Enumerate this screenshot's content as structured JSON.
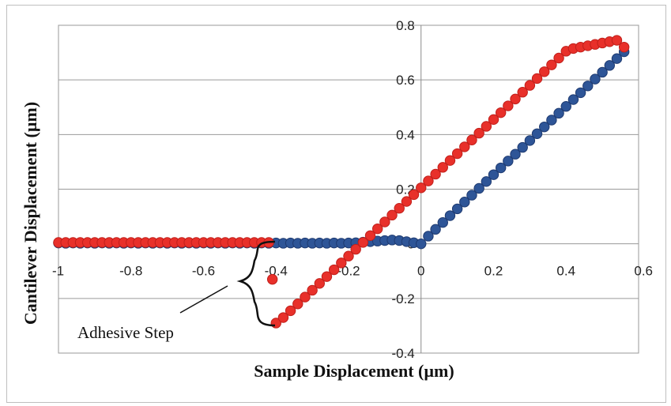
{
  "chart_data": {
    "type": "scatter",
    "title": "",
    "xlabel": "Sample Displacement (µm)",
    "ylabel": "Cantilever Displacement (µm)",
    "xlim": [
      -1,
      0.6
    ],
    "ylim": [
      -0.4,
      0.8
    ],
    "x_ticks": [
      "-1",
      "-0.8",
      "-0.6",
      "-0.4",
      "-0.2",
      "0",
      "0.2",
      "0.4",
      "0.6"
    ],
    "y_ticks": [
      "-0.4",
      "-0.2",
      "0",
      "0.2",
      "0.4",
      "0.6",
      "0.8"
    ],
    "grid": "horizontal",
    "legend": "none",
    "annotation": "Adhesive Step",
    "series": [
      {
        "color": "#2e5597",
        "x": [
          -1.0,
          -0.98,
          -0.96,
          -0.94,
          -0.92,
          -0.9,
          -0.88,
          -0.86,
          -0.84,
          -0.82,
          -0.8,
          -0.78,
          -0.76,
          -0.74,
          -0.72,
          -0.7,
          -0.68,
          -0.66,
          -0.64,
          -0.62,
          -0.6,
          -0.58,
          -0.56,
          -0.54,
          -0.52,
          -0.5,
          -0.48,
          -0.46,
          -0.44,
          -0.42,
          -0.4,
          -0.38,
          -0.36,
          -0.34,
          -0.32,
          -0.3,
          -0.28,
          -0.26,
          -0.24,
          -0.22,
          -0.2,
          -0.18,
          -0.16,
          -0.14,
          -0.12,
          -0.1,
          -0.08,
          -0.06,
          -0.04,
          -0.02,
          0.0,
          0.02,
          0.04,
          0.06,
          0.08,
          0.1,
          0.12,
          0.14,
          0.16,
          0.18,
          0.2,
          0.22,
          0.24,
          0.26,
          0.28,
          0.3,
          0.32,
          0.34,
          0.36,
          0.38,
          0.4,
          0.42,
          0.44,
          0.46,
          0.48,
          0.5,
          0.52,
          0.54,
          0.56
        ],
        "y": [
          0.003,
          0.002,
          0.003,
          0.002,
          0.003,
          0.002,
          0.003,
          0.002,
          0.003,
          0.002,
          0.003,
          0.002,
          0.003,
          0.002,
          0.003,
          0.002,
          0.003,
          0.002,
          0.003,
          0.002,
          0.003,
          0.002,
          0.003,
          0.002,
          0.003,
          0.002,
          0.003,
          0.002,
          0.003,
          0.002,
          0.003,
          0.002,
          0.003,
          0.002,
          0.003,
          0.002,
          0.003,
          0.002,
          0.003,
          0.002,
          0.003,
          0.004,
          0.006,
          0.008,
          0.01,
          0.012,
          0.014,
          0.012,
          0.008,
          0.004,
          0.0,
          0.028,
          0.053,
          0.078,
          0.103,
          0.128,
          0.153,
          0.178,
          0.203,
          0.228,
          0.253,
          0.278,
          0.303,
          0.328,
          0.353,
          0.378,
          0.403,
          0.428,
          0.453,
          0.478,
          0.503,
          0.528,
          0.553,
          0.578,
          0.603,
          0.628,
          0.653,
          0.678,
          0.703
        ]
      },
      {
        "color": "#e8302a",
        "x": [
          -1.0,
          -0.98,
          -0.96,
          -0.94,
          -0.92,
          -0.9,
          -0.88,
          -0.86,
          -0.84,
          -0.82,
          -0.8,
          -0.78,
          -0.76,
          -0.74,
          -0.72,
          -0.7,
          -0.68,
          -0.66,
          -0.64,
          -0.62,
          -0.6,
          -0.58,
          -0.56,
          -0.54,
          -0.52,
          -0.5,
          -0.48,
          -0.46,
          -0.44,
          -0.42,
          -0.41,
          -0.4,
          -0.38,
          -0.36,
          -0.34,
          -0.32,
          -0.3,
          -0.28,
          -0.26,
          -0.24,
          -0.22,
          -0.2,
          -0.18,
          -0.16,
          -0.14,
          -0.12,
          -0.1,
          -0.08,
          -0.06,
          -0.04,
          -0.02,
          0.0,
          0.02,
          0.04,
          0.06,
          0.08,
          0.1,
          0.12,
          0.14,
          0.16,
          0.18,
          0.2,
          0.22,
          0.24,
          0.26,
          0.28,
          0.3,
          0.32,
          0.34,
          0.36,
          0.38,
          0.4,
          0.42,
          0.44,
          0.46,
          0.48,
          0.5,
          0.52,
          0.54,
          0.56
        ],
        "y": [
          0.005,
          0.005,
          0.005,
          0.005,
          0.005,
          0.005,
          0.005,
          0.005,
          0.005,
          0.005,
          0.005,
          0.005,
          0.005,
          0.005,
          0.005,
          0.005,
          0.005,
          0.005,
          0.005,
          0.005,
          0.005,
          0.005,
          0.005,
          0.005,
          0.005,
          0.005,
          0.005,
          0.005,
          0.005,
          0.005,
          -0.13,
          -0.29,
          -0.27,
          -0.245,
          -0.22,
          -0.195,
          -0.17,
          -0.145,
          -0.12,
          -0.095,
          -0.07,
          -0.045,
          -0.02,
          0.005,
          0.03,
          0.055,
          0.08,
          0.105,
          0.13,
          0.155,
          0.18,
          0.205,
          0.23,
          0.255,
          0.28,
          0.305,
          0.33,
          0.355,
          0.38,
          0.405,
          0.43,
          0.455,
          0.48,
          0.505,
          0.53,
          0.555,
          0.58,
          0.605,
          0.63,
          0.655,
          0.68,
          0.705,
          0.715,
          0.72,
          0.725,
          0.73,
          0.735,
          0.74,
          0.745,
          0.72
        ]
      }
    ]
  }
}
